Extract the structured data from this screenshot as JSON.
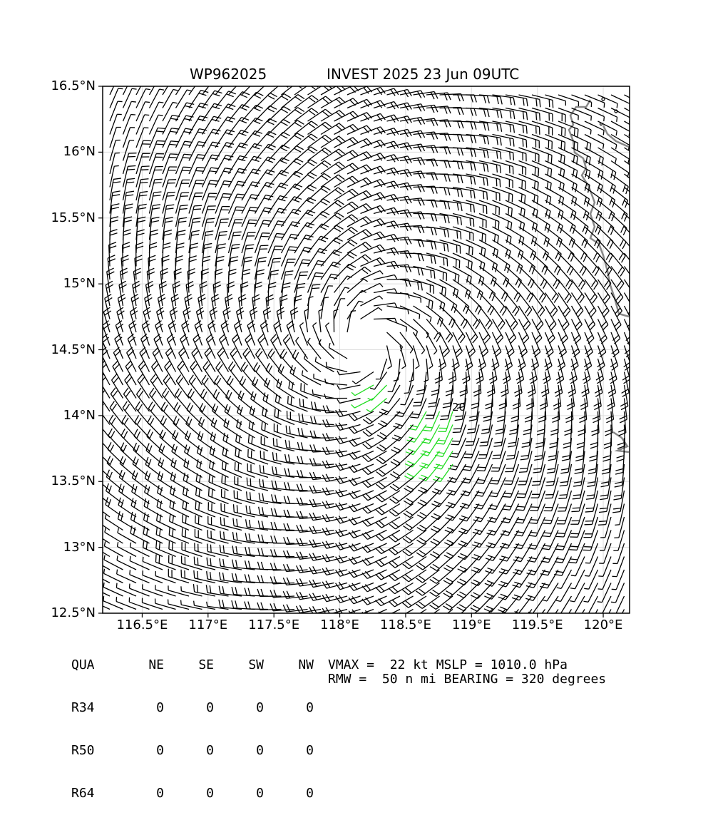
{
  "header": {
    "storm_id": "WP962025",
    "title": "INVEST 2025 23 Jun 09UTC"
  },
  "map": {
    "lon_range": [
      116.2,
      120.2
    ],
    "lat_range": [
      12.5,
      16.5
    ],
    "lat_ticks": [
      "16.5°N",
      "16°N",
      "15.5°N",
      "15°N",
      "14.5°N",
      "14°N",
      "13.5°N",
      "13°N",
      "12.5°N"
    ],
    "lon_ticks": [
      "116.5°E",
      "117°E",
      "117.5°E",
      "118°E",
      "118.5°E",
      "119°E",
      "119.5°E",
      "120°E"
    ],
    "center": {
      "lon": 118.2,
      "lat": 14.55
    },
    "barb_color": "#000000",
    "highlight_color": "#22dd22",
    "coast_color": "#888888",
    "contour_label": "20"
  },
  "table": {
    "header": [
      "QUA",
      "NE",
      "SE",
      "SW",
      "NW"
    ],
    "rows": [
      {
        "label": "R34",
        "values": [
          "0",
          "0",
          "0",
          "0"
        ]
      },
      {
        "label": "R50",
        "values": [
          "0",
          "0",
          "0",
          "0"
        ]
      },
      {
        "label": "R64",
        "values": [
          "0",
          "0",
          "0",
          "0"
        ]
      }
    ]
  },
  "stats": {
    "line1": "VMAX =  22 kt MSLP = 1010.0 hPa",
    "line2": "RMW =  50 n mi BEARING = 320 degrees"
  }
}
